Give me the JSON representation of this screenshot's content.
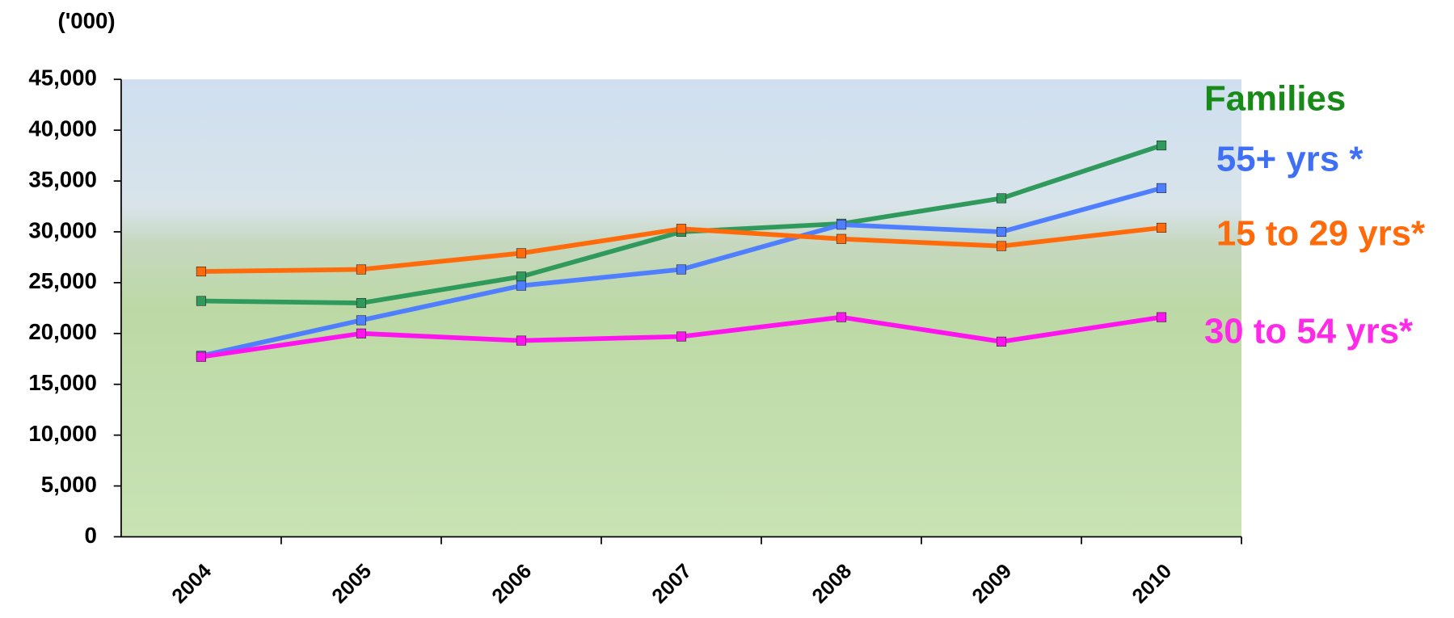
{
  "chart_data": {
    "type": "line",
    "y_axis_label": "('000)",
    "categories": [
      "2004",
      "2005",
      "2006",
      "2007",
      "2008",
      "2009",
      "2010"
    ],
    "series": [
      {
        "name": "Families",
        "color": "#2f9a5c",
        "label_color": "#178a17",
        "values": [
          23200,
          23000,
          25600,
          30000,
          30800,
          33300,
          38500
        ]
      },
      {
        "name": "55+ yrs *",
        "color": "#4f7fff",
        "label_color": "#3f6ff5",
        "values": [
          17800,
          21300,
          24700,
          26300,
          30700,
          30000,
          34300
        ]
      },
      {
        "name": "15 to 29 yrs*",
        "color": "#ff6a0a",
        "label_color": "#ff6a0a",
        "values": [
          26100,
          26300,
          27900,
          30300,
          29300,
          28600,
          30400
        ]
      },
      {
        "name": "30 to 54 yrs*",
        "color": "#ff14f0",
        "label_color": "#ff2ae8",
        "values": [
          17700,
          20000,
          19300,
          19700,
          21600,
          19200,
          21600
        ]
      }
    ],
    "ylim": [
      0,
      45000
    ],
    "yticks": [
      0,
      {
        "value": 5000,
        "label": "5,000"
      },
      {
        "value": 10000,
        "label": "10,000"
      },
      {
        "value": 15000,
        "label": "15,000"
      },
      {
        "value": 20000,
        "label": "20,000"
      },
      {
        "value": 25000,
        "label": "25,000"
      },
      {
        "value": 30000,
        "label": "30,000"
      },
      {
        "value": 35000,
        "label": "35,000"
      },
      {
        "value": 40000,
        "label": "40,000"
      },
      {
        "value": 45000,
        "label": "45,000"
      }
    ]
  }
}
